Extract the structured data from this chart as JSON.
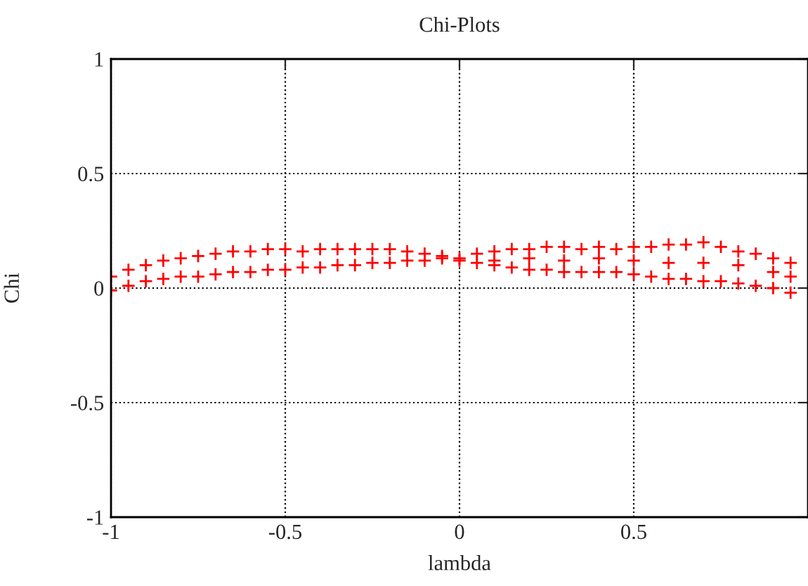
{
  "chart_data": {
    "type": "scatter",
    "title": "Chi-Plots",
    "xlabel": "lambda",
    "ylabel": "Chi",
    "xlim": [
      -1,
      1
    ],
    "xticks": [
      -1,
      -0.5,
      0,
      0.5
    ],
    "ylim": [
      -1,
      1
    ],
    "yticks": [
      -1,
      -0.5,
      0,
      0.5,
      1
    ],
    "grid": true,
    "marker": "cross",
    "series": [
      {
        "color": "#ff0000",
        "x": [
          -1,
          -0.95,
          -0.9,
          -0.85,
          -0.8,
          -0.75,
          -0.7,
          -0.65,
          -0.6,
          -0.55,
          -0.5,
          -0.45,
          -0.4,
          -0.35,
          -0.3,
          -0.25,
          -0.2,
          -0.15,
          -0.1,
          -0.05,
          0,
          0.05,
          0.1,
          0.15,
          0.2,
          0.25,
          0.3,
          0.35,
          0.4,
          0.45,
          0.5,
          0.55,
          0.6,
          0.65,
          0.7,
          0.75,
          0.8,
          0.85,
          0.9,
          0.95,
          -1,
          -0.95,
          -0.9,
          -0.85,
          -0.8,
          -0.75,
          -0.7,
          -0.65,
          -0.6,
          -0.55,
          -0.5,
          -0.45,
          -0.4,
          -0.35,
          -0.3,
          -0.25,
          -0.2,
          -0.15,
          -0.1,
          -0.05,
          0,
          0.05,
          0.1,
          0.15,
          0.2,
          0.25,
          0.3,
          0.35,
          0.4,
          0.45,
          0.5,
          0.55,
          0.6,
          0.65,
          0.7,
          0.75,
          0.8,
          0.85,
          0.9,
          0.95,
          0.1,
          0.2,
          0.3,
          0.4,
          0.5,
          0.6,
          0.7,
          0.8,
          0.9,
          0.95
        ],
        "values": [
          0.05,
          0.08,
          0.1,
          0.12,
          0.13,
          0.14,
          0.15,
          0.16,
          0.16,
          0.17,
          0.17,
          0.16,
          0.17,
          0.17,
          0.17,
          0.17,
          0.17,
          0.16,
          0.15,
          0.14,
          0.13,
          0.15,
          0.16,
          0.17,
          0.17,
          0.18,
          0.18,
          0.17,
          0.18,
          0.17,
          0.18,
          0.18,
          0.19,
          0.19,
          0.2,
          0.18,
          0.16,
          0.15,
          0.13,
          0.11,
          -0.01,
          0.01,
          0.03,
          0.04,
          0.05,
          0.05,
          0.06,
          0.07,
          0.07,
          0.08,
          0.08,
          0.09,
          0.09,
          0.1,
          0.1,
          0.11,
          0.11,
          0.12,
          0.12,
          0.13,
          0.12,
          0.11,
          0.1,
          0.09,
          0.08,
          0.08,
          0.07,
          0.07,
          0.07,
          0.07,
          0.06,
          0.05,
          0.04,
          0.04,
          0.03,
          0.03,
          0.02,
          0.01,
          0,
          -0.02,
          0.12,
          0.13,
          0.12,
          0.13,
          0.12,
          0.11,
          0.11,
          0.1,
          0.07,
          0.05
        ]
      }
    ]
  }
}
